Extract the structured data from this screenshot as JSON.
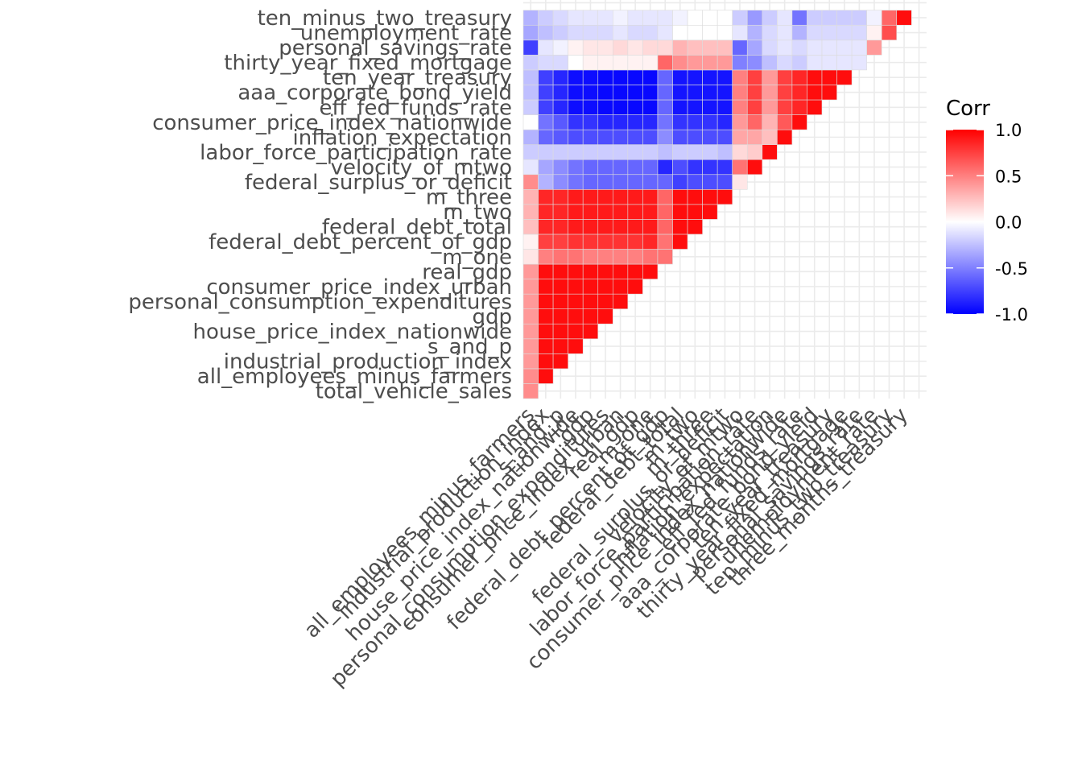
{
  "chart_data": {
    "type": "heatmap",
    "title": "",
    "xlabel": "",
    "ylabel": "",
    "variables": [
      "total_vehicle_sales",
      "all_employees_minus_farmers",
      "industrial_production_index",
      "s_and_p",
      "house_price_index_nationwide",
      "gdp",
      "personal_consumption_expenditures",
      "consumer_price_index_urban",
      "real_gdp",
      "m_one",
      "federal_debt_percent_of_gdp",
      "federal_debt_total",
      "m_two",
      "m_three",
      "federal_surplus_or_deficit",
      "velocity_of_mtwo",
      "labor_force_participation_rate",
      "inflation_expectation",
      "consumer_price_index_nationwide",
      "eff_fed_funds_rate",
      "aaa_corporate_bond_yield",
      "ten_year_treasury",
      "thirty_year_fixed_mortgage",
      "personal_savings_rate",
      "unemployment_rate",
      "ten_minus_two_treasury",
      "three_months_treasury"
    ],
    "x_tick_labels": [
      "all_employees_minus_farmers",
      "industrial_production_index",
      "s_and_p",
      "house_price_index_nationwide",
      "gdp",
      "personal_consumption_expenditures",
      "consumer_price_index_urban",
      "real_gdp",
      "m_one",
      "federal_debt_percent_of_gdp",
      "federal_debt_total",
      "m_two",
      "m_three",
      "federal_surplus_or_deficit",
      "velocity_of_mtwo",
      "labor_force_participation_rate",
      "inflation_expectation",
      "consumer_price_index_nationwide",
      "eff_fed_funds_rate",
      "aaa_corporate_bond_yield",
      "ten_year_treasury",
      "thirty_year_fixed_mortgage",
      "personal_savings_rate",
      "unemployment_rate",
      "ten_minus_two_treasury",
      "three_months_treasury"
    ],
    "y_tick_labels": [
      "total_vehicle_sales",
      "all_employees_minus_farmers",
      "industrial_production_index",
      "s_and_p",
      "house_price_index_nationwide",
      "gdp",
      "personal_consumption_expenditures",
      "consumer_price_index_urban",
      "real_gdp",
      "m_one",
      "federal_debt_percent_of_gdp",
      "federal_debt_total",
      "m_two",
      "m_three",
      "federal_surplus_or_deficit",
      "velocity_of_mtwo",
      "labor_force_participation_rate",
      "inflation_expectation",
      "consumer_price_index_nationwide",
      "eff_fed_funds_rate",
      "aaa_corporate_bond_yield",
      "ten_year_treasury",
      "thirty_year_fixed_mortgage",
      "personal_savings_rate",
      "unemployment_rate",
      "ten_minus_two_treasury"
    ],
    "lower_triangle_rows": [
      [
        0.45
      ],
      [
        0.45,
        0.95
      ],
      [
        0.4,
        0.95,
        0.95
      ],
      [
        0.4,
        0.95,
        0.95,
        0.95
      ],
      [
        0.4,
        0.95,
        0.95,
        0.95,
        0.95
      ],
      [
        0.4,
        0.95,
        0.95,
        0.95,
        0.95,
        0.95
      ],
      [
        0.4,
        0.95,
        0.95,
        0.95,
        0.95,
        0.95,
        0.95
      ],
      [
        0.4,
        0.95,
        0.95,
        0.95,
        0.95,
        0.95,
        0.95,
        0.95
      ],
      [
        0.4,
        0.95,
        0.95,
        0.95,
        0.95,
        0.95,
        0.95,
        0.95,
        0.95
      ],
      [
        0.1,
        0.5,
        0.55,
        0.55,
        0.5,
        0.5,
        0.5,
        0.5,
        0.55,
        0.55
      ],
      [
        0.05,
        0.75,
        0.75,
        0.8,
        0.8,
        0.8,
        0.8,
        0.8,
        0.85,
        0.55,
        0.95
      ],
      [
        0.25,
        0.85,
        0.85,
        0.9,
        0.9,
        0.9,
        0.9,
        0.9,
        0.9,
        0.6,
        0.95,
        0.95
      ],
      [
        0.3,
        0.85,
        0.85,
        0.9,
        0.9,
        0.9,
        0.9,
        0.9,
        0.9,
        0.6,
        0.95,
        0.95,
        0.95
      ],
      [
        0.3,
        0.85,
        0.85,
        0.9,
        0.9,
        0.9,
        0.9,
        0.9,
        0.9,
        0.6,
        0.95,
        0.95,
        0.95,
        0.95
      ],
      [
        0.45,
        -0.3,
        -0.45,
        -0.55,
        -0.6,
        -0.6,
        -0.6,
        -0.6,
        -0.6,
        -0.6,
        -0.75,
        -0.7,
        -0.7,
        -0.7,
        0.1
      ],
      [
        -0.1,
        -0.35,
        -0.45,
        -0.55,
        -0.6,
        -0.6,
        -0.6,
        -0.6,
        -0.6,
        -0.85,
        -0.7,
        -0.8,
        -0.8,
        -0.8,
        0.55,
        0.95
      ],
      [
        -0.2,
        -0.2,
        -0.2,
        -0.2,
        -0.2,
        -0.2,
        -0.2,
        -0.2,
        -0.2,
        -0.25,
        -0.2,
        -0.2,
        -0.2,
        -0.25,
        0.15,
        0.2,
        0.95
      ],
      [
        -0.3,
        -0.6,
        -0.65,
        -0.7,
        -0.7,
        -0.7,
        -0.7,
        -0.7,
        -0.7,
        -0.45,
        -0.7,
        -0.7,
        -0.7,
        -0.7,
        0.35,
        0.35,
        0.25,
        0.95
      ],
      [
        0.0,
        -0.55,
        -0.65,
        -0.8,
        -0.8,
        -0.85,
        -0.85,
        -0.85,
        -0.85,
        -0.55,
        -0.8,
        -0.8,
        -0.8,
        -0.85,
        0.4,
        0.6,
        0.3,
        0.65,
        0.95
      ],
      [
        -0.2,
        -0.75,
        -0.85,
        -0.95,
        -0.95,
        -0.97,
        -0.97,
        -0.97,
        -0.97,
        -0.6,
        -0.92,
        -0.92,
        -0.92,
        -0.92,
        0.5,
        0.75,
        0.4,
        0.75,
        0.85,
        0.95
      ],
      [
        -0.25,
        -0.75,
        -0.85,
        -0.95,
        -0.95,
        -0.97,
        -0.97,
        -0.97,
        -0.97,
        -0.6,
        -0.92,
        -0.92,
        -0.92,
        -0.92,
        0.5,
        0.75,
        0.4,
        0.75,
        0.85,
        0.95,
        0.95
      ],
      [
        -0.25,
        -0.75,
        -0.85,
        -0.95,
        -0.95,
        -0.97,
        -0.97,
        -0.97,
        -0.97,
        -0.6,
        -0.92,
        -0.92,
        -0.92,
        -0.92,
        0.5,
        0.75,
        0.4,
        0.75,
        0.85,
        0.95,
        0.95,
        0.95
      ],
      [
        -0.2,
        -0.15,
        -0.15,
        0.0,
        0.05,
        0.05,
        0.05,
        0.05,
        0.05,
        0.6,
        0.45,
        0.4,
        0.4,
        0.4,
        -0.5,
        -0.45,
        -0.25,
        -0.15,
        -0.2,
        -0.1,
        -0.1,
        -0.1,
        -0.1
      ],
      [
        -0.75,
        -0.1,
        -0.05,
        0.05,
        0.1,
        0.1,
        0.15,
        0.1,
        0.15,
        0.15,
        0.3,
        0.25,
        0.25,
        0.25,
        -0.6,
        -0.35,
        -0.15,
        -0.1,
        -0.15,
        -0.1,
        -0.1,
        -0.1,
        -0.1,
        0.4
      ],
      [
        -0.35,
        -0.25,
        -0.2,
        -0.15,
        -0.15,
        -0.15,
        -0.1,
        -0.15,
        -0.15,
        -0.1,
        0.0,
        0.0,
        0.0,
        0.0,
        -0.1,
        -0.3,
        -0.15,
        -0.1,
        -0.3,
        -0.15,
        -0.15,
        -0.15,
        -0.15,
        0.05,
        0.7
      ],
      [
        -0.3,
        -0.2,
        -0.15,
        -0.1,
        -0.1,
        -0.1,
        -0.05,
        -0.1,
        -0.1,
        -0.1,
        -0.05,
        0.0,
        0.0,
        0.0,
        -0.2,
        -0.4,
        -0.2,
        -0.1,
        -0.55,
        -0.2,
        -0.2,
        -0.2,
        -0.2,
        -0.05,
        0.6,
        0.95
      ]
    ],
    "color_scale": {
      "low": "#0000FF",
      "mid": "#FFFFFF",
      "high": "#FF0000",
      "limits": [
        -1,
        1
      ]
    },
    "legend": {
      "title": "Corr",
      "position": "right",
      "labels": [
        "1.0",
        "0.5",
        "0.0",
        "-0.5",
        "-1.0"
      ]
    },
    "grid": true
  }
}
